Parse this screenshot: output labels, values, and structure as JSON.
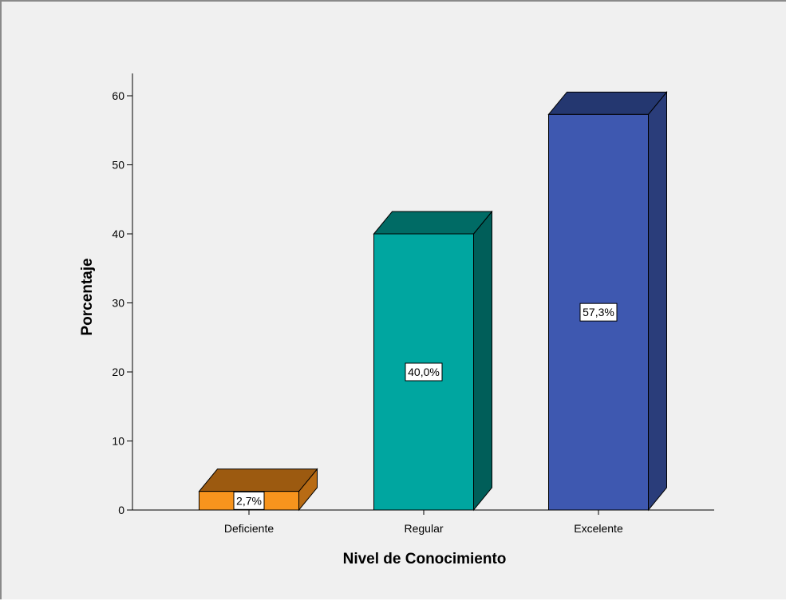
{
  "chart_data": {
    "type": "bar",
    "style": "3d",
    "xlabel": "Nivel de Conocimiento",
    "ylabel": "Porcentaje",
    "ylim": [
      0,
      60
    ],
    "yticks": [
      "0",
      "10",
      "20",
      "30",
      "40",
      "50",
      "60"
    ],
    "categories": [
      "Deficiente",
      "Regular",
      "Excelente"
    ],
    "values": [
      2.7,
      40.0,
      57.3
    ],
    "data_labels": [
      "2,7%",
      "40,0%",
      "57,3%"
    ],
    "colors": [
      {
        "front": "#f7941d",
        "top": "#9c5a10",
        "side": "#b86b14"
      },
      {
        "front": "#00a6a0",
        "top": "#006b65",
        "side": "#005e59"
      },
      {
        "front": "#3e58b0",
        "top": "#243770",
        "side": "#2a3d7a"
      }
    ],
    "grid": false,
    "background": "#f0f0f0"
  }
}
